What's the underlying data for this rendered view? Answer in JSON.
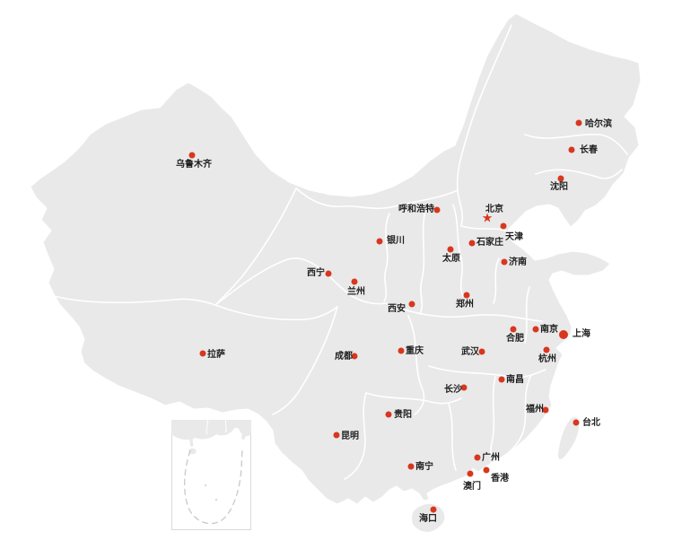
{
  "map": {
    "name": "china-cities-map",
    "colors": {
      "land": "#e9e9e9",
      "border": "#ffffff",
      "dot": "#d8371f",
      "label": "#1f1f1f",
      "inset_border": "#dadada",
      "dash_line": "#c9c9c9"
    },
    "capital_marker_glyph": "★",
    "cities": [
      {
        "id": "wulumuqi",
        "name": "乌鲁木齐",
        "marker": "dot",
        "dot": [
          214,
          173
        ],
        "label": [
          196,
          179
        ]
      },
      {
        "id": "haerbin",
        "name": "哈尔滨",
        "marker": "dot",
        "dot": [
          645,
          137
        ],
        "label": [
          652,
          134
        ]
      },
      {
        "id": "changchun",
        "name": "长春",
        "marker": "dot",
        "dot": [
          637,
          167
        ],
        "label": [
          646,
          163
        ]
      },
      {
        "id": "shenyang",
        "name": "沈阳",
        "marker": "dot",
        "dot": [
          625,
          199
        ],
        "label": [
          613,
          204
        ]
      },
      {
        "id": "beijing",
        "name": "北京",
        "marker": "star",
        "dot": [
          543,
          243
        ],
        "label": [
          541,
          229
        ]
      },
      {
        "id": "tianjin",
        "name": "天津",
        "marker": "dot",
        "dot": [
          561,
          252
        ],
        "label": [
          563,
          260
        ]
      },
      {
        "id": "shijiazhuang",
        "name": "石家庄",
        "marker": "dot",
        "dot": [
          526,
          271
        ],
        "label": [
          531,
          266
        ]
      },
      {
        "id": "huhehaote",
        "name": "呼和浩特",
        "marker": "dot",
        "dot": [
          487,
          234
        ],
        "label": [
          444,
          229
        ]
      },
      {
        "id": "yinchuan",
        "name": "银川",
        "marker": "dot",
        "dot": [
          423,
          269
        ],
        "label": [
          431,
          264
        ]
      },
      {
        "id": "taiyuan",
        "name": "太原",
        "marker": "dot",
        "dot": [
          502,
          278
        ],
        "label": [
          493,
          284
        ]
      },
      {
        "id": "jinan",
        "name": "济南",
        "marker": "dot",
        "dot": [
          562,
          292
        ],
        "label": [
          567,
          288
        ]
      },
      {
        "id": "xining",
        "name": "西宁",
        "marker": "dot",
        "dot": [
          366,
          305
        ],
        "label": [
          342,
          300
        ]
      },
      {
        "id": "lanzhou",
        "name": "兰州",
        "marker": "dot",
        "dot": [
          395,
          314
        ],
        "label": [
          387,
          321
        ]
      },
      {
        "id": "xian",
        "name": "西安",
        "marker": "dot",
        "dot": [
          459,
          339
        ],
        "label": [
          432,
          340
        ]
      },
      {
        "id": "zhengzhou",
        "name": "郑州",
        "marker": "dot",
        "dot": [
          520,
          329
        ],
        "label": [
          508,
          335
        ]
      },
      {
        "id": "hefei",
        "name": "合肥",
        "marker": "dot",
        "dot": [
          572,
          367
        ],
        "label": [
          564,
          373
        ]
      },
      {
        "id": "nanjing",
        "name": "南京",
        "marker": "dot",
        "dot": [
          597,
          367
        ],
        "label": [
          602,
          363
        ]
      },
      {
        "id": "shanghai",
        "name": "上海",
        "marker": "dot",
        "big": true,
        "dot": [
          628,
          373
        ],
        "label": [
          638,
          368
        ]
      },
      {
        "id": "hangzhou",
        "name": "杭州",
        "marker": "dot",
        "dot": [
          609,
          390
        ],
        "label": [
          600,
          396
        ]
      },
      {
        "id": "wuhan",
        "name": "武汉",
        "marker": "dot",
        "dot": [
          537,
          392
        ],
        "label": [
          514,
          388
        ]
      },
      {
        "id": "lasa",
        "name": "拉萨",
        "marker": "dot",
        "dot": [
          226,
          394
        ],
        "label": [
          231,
          391
        ]
      },
      {
        "id": "chengdu",
        "name": "成都",
        "marker": "dot",
        "dot": [
          395,
          397
        ],
        "label": [
          373,
          393
        ]
      },
      {
        "id": "chongqing",
        "name": "重庆",
        "marker": "dot",
        "dot": [
          447,
          391
        ],
        "label": [
          452,
          387
        ]
      },
      {
        "id": "nanchang",
        "name": "南昌",
        "marker": "dot",
        "dot": [
          559,
          423
        ],
        "label": [
          564,
          419
        ]
      },
      {
        "id": "changsha",
        "name": "长沙",
        "marker": "dot",
        "dot": [
          517,
          432
        ],
        "label": [
          495,
          430
        ]
      },
      {
        "id": "guiyang",
        "name": "贵阳",
        "marker": "dot",
        "dot": [
          433,
          462
        ],
        "label": [
          439,
          458
        ]
      },
      {
        "id": "fuzhou",
        "name": "福州",
        "marker": "dot",
        "dot": [
          608,
          457
        ],
        "label": [
          586,
          452
        ]
      },
      {
        "id": "taibei",
        "name": "台北",
        "marker": "dot",
        "dot": [
          642,
          471
        ],
        "label": [
          649,
          467
        ]
      },
      {
        "id": "kunming",
        "name": "昆明",
        "marker": "dot",
        "dot": [
          375,
          485
        ],
        "label": [
          380,
          482
        ]
      },
      {
        "id": "nanning",
        "name": "南宁",
        "marker": "dot",
        "dot": [
          458,
          520
        ],
        "label": [
          463,
          516
        ]
      },
      {
        "id": "guangzhou",
        "name": "广州",
        "marker": "dot",
        "dot": [
          532,
          510
        ],
        "label": [
          537,
          506
        ]
      },
      {
        "id": "xianggang",
        "name": "香港",
        "marker": "dot",
        "dot": [
          542,
          524
        ],
        "label": [
          547,
          529
        ]
      },
      {
        "id": "aomen",
        "name": "澳门",
        "marker": "dot",
        "dot": [
          524,
          528
        ],
        "label": [
          516,
          538
        ]
      },
      {
        "id": "haikou",
        "name": "海口",
        "marker": "dot",
        "dot": [
          483,
          568
        ],
        "label": [
          467,
          574
        ]
      }
    ]
  }
}
